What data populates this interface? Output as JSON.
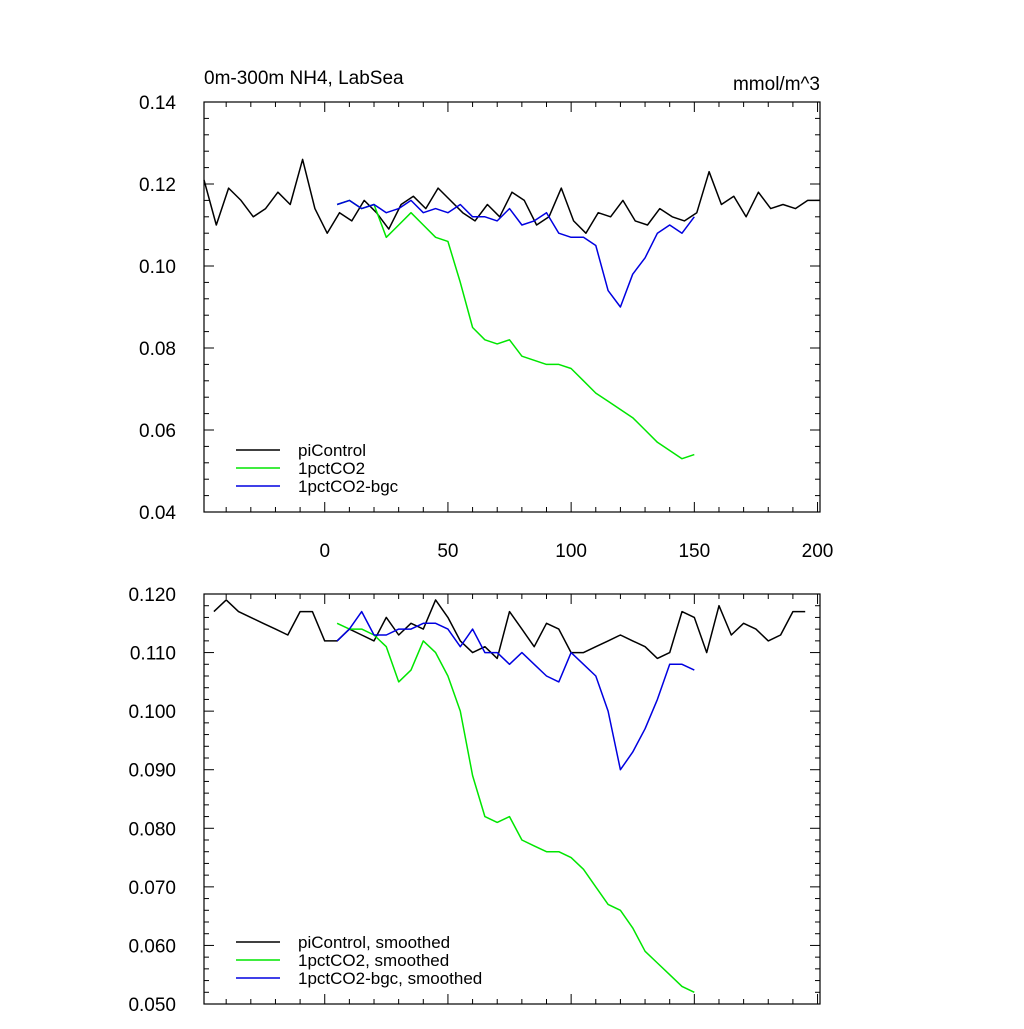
{
  "chart_data": [
    {
      "type": "line",
      "title": "0m-300m NH4, LabSea",
      "units": "mmol/m^3",
      "xlabel": "",
      "ylabel": "",
      "xlim": [
        -49,
        201
      ],
      "ylim": [
        0.04,
        0.14
      ],
      "x_ticks": [
        0,
        50,
        100,
        150,
        200
      ],
      "x_tick_labels": [
        "0",
        "50",
        "100",
        "150",
        "200"
      ],
      "y_ticks": [
        0.04,
        0.06,
        0.08,
        0.1,
        0.12,
        0.14
      ],
      "y_tick_labels": [
        "0.04",
        "0.06",
        "0.08",
        "0.10",
        "0.12",
        "0.14"
      ],
      "grid": false,
      "legend_position": "bottom-left",
      "series": [
        {
          "name": "piControl",
          "color": "#000000",
          "x": [
            -49,
            -44,
            -39,
            -34,
            -29,
            -24,
            -19,
            -14,
            -9,
            -4,
            1,
            6,
            11,
            16,
            21,
            26,
            31,
            36,
            41,
            46,
            51,
            56,
            61,
            66,
            71,
            76,
            81,
            86,
            91,
            96,
            101,
            106,
            111,
            116,
            121,
            126,
            131,
            136,
            141,
            146,
            151,
            156,
            161,
            166,
            171,
            176,
            181,
            186,
            191,
            196,
            201
          ],
          "values": [
            0.121,
            0.11,
            0.119,
            0.116,
            0.112,
            0.114,
            0.118,
            0.115,
            0.126,
            0.114,
            0.108,
            0.113,
            0.111,
            0.116,
            0.113,
            0.109,
            0.115,
            0.117,
            0.114,
            0.119,
            0.116,
            0.113,
            0.111,
            0.115,
            0.112,
            0.118,
            0.116,
            0.11,
            0.112,
            0.119,
            0.111,
            0.108,
            0.113,
            0.112,
            0.116,
            0.111,
            0.11,
            0.114,
            0.112,
            0.111,
            0.113,
            0.123,
            0.115,
            0.117,
            0.112,
            0.118,
            0.114,
            0.115,
            0.114,
            0.116,
            0.116
          ]
        },
        {
          "name": "1pctCO2",
          "color": "#00e600",
          "x": [
            5,
            10,
            15,
            20,
            25,
            30,
            35,
            40,
            45,
            50,
            55,
            60,
            65,
            70,
            75,
            80,
            85,
            90,
            95,
            100,
            105,
            110,
            115,
            120,
            125,
            130,
            135,
            140,
            145,
            150
          ],
          "values": [
            0.115,
            0.116,
            0.114,
            0.115,
            0.107,
            0.11,
            0.113,
            0.11,
            0.107,
            0.106,
            0.096,
            0.085,
            0.082,
            0.081,
            0.082,
            0.078,
            0.077,
            0.076,
            0.076,
            0.075,
            0.072,
            0.069,
            0.067,
            0.065,
            0.063,
            0.06,
            0.057,
            0.055,
            0.053,
            0.054
          ]
        },
        {
          "name": "1pctCO2-bgc",
          "color": "#0000e0",
          "x": [
            5,
            10,
            15,
            20,
            25,
            30,
            35,
            40,
            45,
            50,
            55,
            60,
            65,
            70,
            75,
            80,
            85,
            90,
            95,
            100,
            105,
            110,
            115,
            120,
            125,
            130,
            135,
            140,
            145,
            150
          ],
          "values": [
            0.115,
            0.116,
            0.114,
            0.115,
            0.113,
            0.114,
            0.116,
            0.113,
            0.114,
            0.113,
            0.115,
            0.112,
            0.112,
            0.111,
            0.114,
            0.11,
            0.111,
            0.113,
            0.108,
            0.107,
            0.107,
            0.105,
            0.094,
            0.09,
            0.098,
            0.102,
            0.108,
            0.11,
            0.108,
            0.112
          ]
        }
      ],
      "legend": [
        "piControl",
        "1pctCO2",
        "1pctCO2-bgc"
      ]
    },
    {
      "type": "line",
      "title": "",
      "xlabel": "",
      "ylabel": "",
      "xlim": [
        -49,
        201
      ],
      "ylim": [
        0.05,
        0.12
      ],
      "x_ticks": [
        0,
        50,
        100,
        150,
        200
      ],
      "y_ticks": [
        0.05,
        0.06,
        0.07,
        0.08,
        0.09,
        0.1,
        0.11,
        0.12
      ],
      "y_tick_labels": [
        "0.050",
        "0.060",
        "0.070",
        "0.080",
        "0.090",
        "0.100",
        "0.110",
        "0.120"
      ],
      "grid": false,
      "legend_position": "bottom-left",
      "series": [
        {
          "name": "piControl, smoothed",
          "color": "#000000",
          "x": [
            -45,
            -40,
            -35,
            -30,
            -25,
            -20,
            -15,
            -10,
            -5,
            0,
            5,
            10,
            15,
            20,
            25,
            30,
            35,
            40,
            45,
            50,
            55,
            60,
            65,
            70,
            75,
            80,
            85,
            90,
            95,
            100,
            105,
            110,
            115,
            120,
            125,
            130,
            135,
            140,
            145,
            150,
            155,
            160,
            165,
            170,
            175,
            180,
            185,
            190,
            195
          ],
          "values": [
            0.117,
            0.119,
            0.117,
            0.116,
            0.115,
            0.114,
            0.113,
            0.117,
            0.117,
            0.112,
            0.112,
            0.114,
            0.113,
            0.112,
            0.116,
            0.113,
            0.115,
            0.114,
            0.119,
            0.116,
            0.112,
            0.11,
            0.111,
            0.109,
            0.117,
            0.114,
            0.111,
            0.115,
            0.114,
            0.11,
            0.11,
            0.111,
            0.112,
            0.113,
            0.112,
            0.111,
            0.109,
            0.11,
            0.117,
            0.116,
            0.11,
            0.118,
            0.113,
            0.115,
            0.114,
            0.112,
            0.113,
            0.117,
            0.117
          ]
        },
        {
          "name": "1pctCO2, smoothed",
          "color": "#00e600",
          "x": [
            5,
            10,
            15,
            20,
            25,
            30,
            35,
            40,
            45,
            50,
            55,
            60,
            65,
            70,
            75,
            80,
            85,
            90,
            95,
            100,
            105,
            110,
            115,
            120,
            125,
            130,
            135,
            140,
            145,
            150
          ],
          "values": [
            0.115,
            0.114,
            0.114,
            0.113,
            0.111,
            0.105,
            0.107,
            0.112,
            0.11,
            0.106,
            0.1,
            0.089,
            0.082,
            0.081,
            0.082,
            0.078,
            0.077,
            0.076,
            0.076,
            0.075,
            0.073,
            0.07,
            0.067,
            0.066,
            0.063,
            0.059,
            0.057,
            0.055,
            0.053,
            0.052
          ]
        },
        {
          "name": "1pctCO2-bgc, smoothed",
          "color": "#0000e0",
          "x": [
            5,
            10,
            15,
            20,
            25,
            30,
            35,
            40,
            45,
            50,
            55,
            60,
            65,
            70,
            75,
            80,
            85,
            90,
            95,
            100,
            105,
            110,
            115,
            120,
            125,
            130,
            135,
            140,
            145,
            150
          ],
          "values": [
            0.112,
            0.114,
            0.117,
            0.113,
            0.113,
            0.114,
            0.114,
            0.115,
            0.115,
            0.114,
            0.111,
            0.114,
            0.11,
            0.11,
            0.108,
            0.11,
            0.108,
            0.106,
            0.105,
            0.11,
            0.108,
            0.106,
            0.1,
            0.09,
            0.093,
            0.097,
            0.102,
            0.108,
            0.108,
            0.107
          ]
        }
      ],
      "legend": [
        "piControl, smoothed",
        "1pctCO2, smoothed",
        "1pctCO2-bgc, smoothed"
      ]
    }
  ]
}
